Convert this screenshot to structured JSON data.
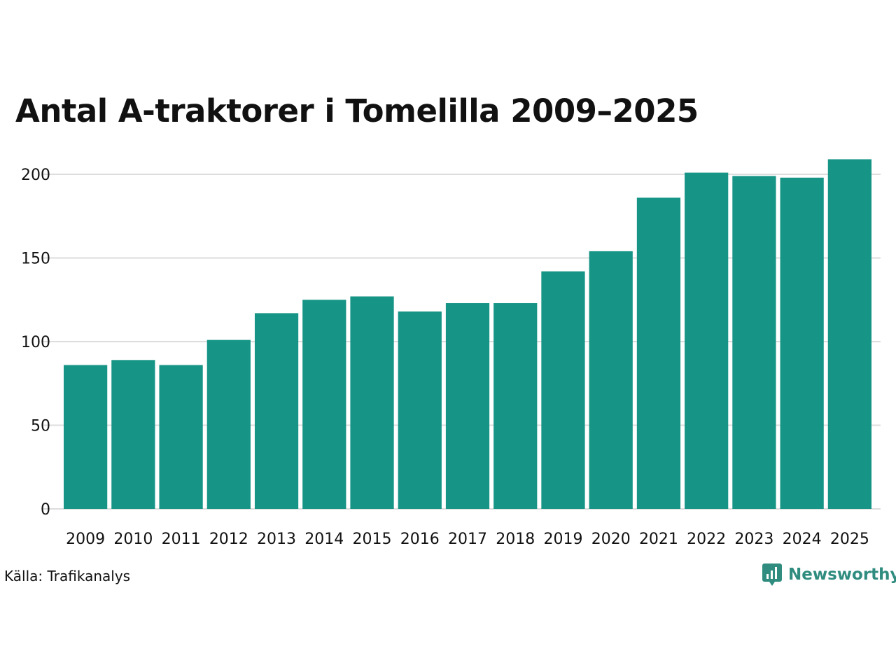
{
  "title": "Antal A-traktorer i Tomelilla 2009–2025",
  "source": "Källa: Trafikanalys",
  "brand": {
    "name": "Newsworthy",
    "icon": "newsworthy-logo-icon",
    "color": "#2f8c7f"
  },
  "colors": {
    "bar": "#169586",
    "grid": "#dddddd",
    "text": "#111111"
  },
  "chart_data": {
    "type": "bar",
    "categories": [
      "2009",
      "2010",
      "2011",
      "2012",
      "2013",
      "2014",
      "2015",
      "2016",
      "2017",
      "2018",
      "2019",
      "2020",
      "2021",
      "2022",
      "2023",
      "2024",
      "2025"
    ],
    "values": [
      86,
      89,
      86,
      101,
      117,
      125,
      127,
      118,
      123,
      123,
      142,
      154,
      186,
      201,
      199,
      198,
      209
    ],
    "yticks": [
      0,
      50,
      100,
      150,
      200
    ],
    "ylim": [
      0,
      210
    ],
    "grid": true
  }
}
